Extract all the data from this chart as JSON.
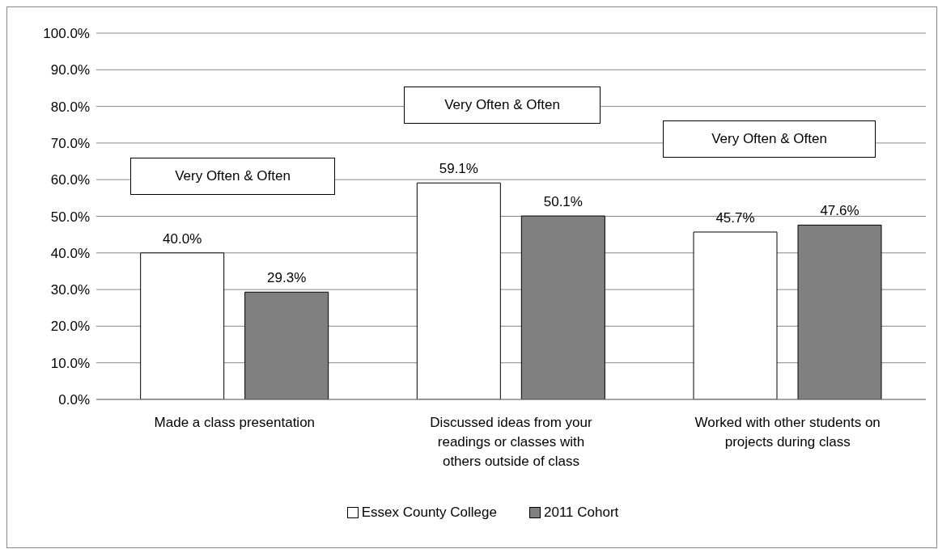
{
  "chart_data": {
    "type": "bar",
    "categories": [
      "Made a class presentation",
      "Discussed ideas from your readings or classes with others outside of class",
      "Worked with other students on projects during class"
    ],
    "series": [
      {
        "name": "Essex County College",
        "color": "#ffffff",
        "values": [
          40.0,
          59.1,
          45.7
        ]
      },
      {
        "name": "2011 Cohort",
        "color": "#808080",
        "values": [
          29.3,
          50.1,
          47.6
        ]
      }
    ],
    "value_labels": [
      [
        "40.0%",
        "59.1%",
        "45.7%"
      ],
      [
        "29.3%",
        "50.1%",
        "47.6%"
      ]
    ],
    "ylim": [
      0,
      100
    ],
    "yticks": [
      {
        "value": 0,
        "label": "0.0%"
      },
      {
        "value": 10,
        "label": "10.0%"
      },
      {
        "value": 20,
        "label": "20.0%"
      },
      {
        "value": 30,
        "label": "30.0%"
      },
      {
        "value": 40,
        "label": "40.0%"
      },
      {
        "value": 50,
        "label": "50.0%"
      },
      {
        "value": 60,
        "label": "60.0%"
      },
      {
        "value": 70,
        "label": "70.0%"
      },
      {
        "value": 80,
        "label": "80.0%"
      },
      {
        "value": 90,
        "label": "90.0%"
      },
      {
        "value": 100,
        "label": "100.0%"
      }
    ],
    "grid": "y",
    "legend": "bottom",
    "annotations": [
      "Very Often & Often",
      "Very Often & Often",
      "Very Often & Often"
    ]
  }
}
